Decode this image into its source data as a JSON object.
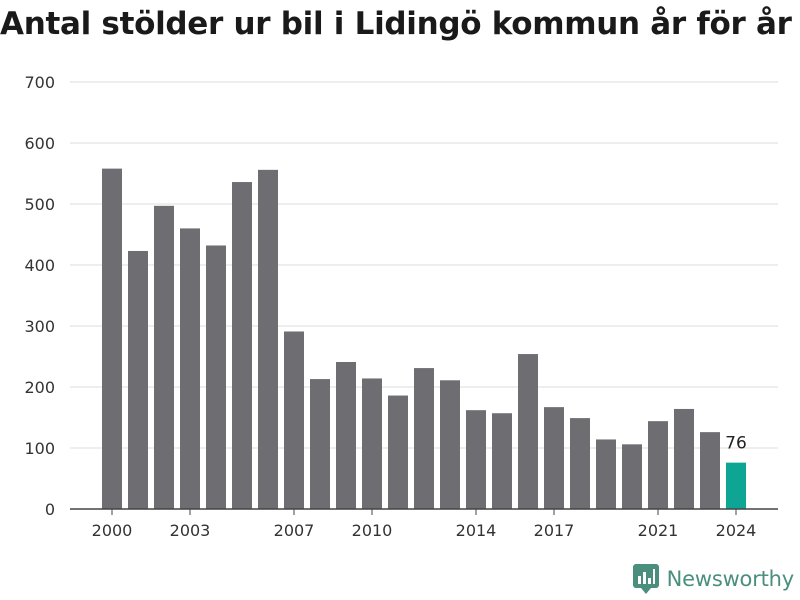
{
  "title": "Antal stölder ur bil i Lidingö kommun år för år",
  "brand": {
    "name": "Newsworthy",
    "icon": "newsworthy-logo-icon",
    "color": "#4a8f7d"
  },
  "chart_data": {
    "type": "bar",
    "title": "Antal stölder ur bil i Lidingö kommun år för år",
    "xlabel": "",
    "ylabel": "",
    "ylim": [
      0,
      700
    ],
    "yticks": [
      0,
      100,
      200,
      300,
      400,
      500,
      600,
      700
    ],
    "xticks": [
      "2000",
      "2003",
      "2007",
      "2010",
      "2014",
      "2017",
      "2021",
      "2024"
    ],
    "grid": true,
    "categories": [
      "2000",
      "2001",
      "2002",
      "2003",
      "2004",
      "2005",
      "2006",
      "2007",
      "2008",
      "2009",
      "2010",
      "2011",
      "2012",
      "2013",
      "2014",
      "2015",
      "2016",
      "2017",
      "2018",
      "2019",
      "2020",
      "2021",
      "2022",
      "2023",
      "2024"
    ],
    "values": [
      558,
      423,
      497,
      460,
      432,
      536,
      556,
      291,
      213,
      241,
      214,
      186,
      231,
      211,
      162,
      157,
      254,
      167,
      149,
      114,
      106,
      144,
      164,
      126,
      76
    ],
    "colors": {
      "default": "#6d6d72",
      "highlight": "#0fa595",
      "grid": "#dddddd",
      "axis": "#444444"
    },
    "highlight_index": 24,
    "data_labels": [
      {
        "index": 24,
        "text": "76"
      }
    ]
  }
}
